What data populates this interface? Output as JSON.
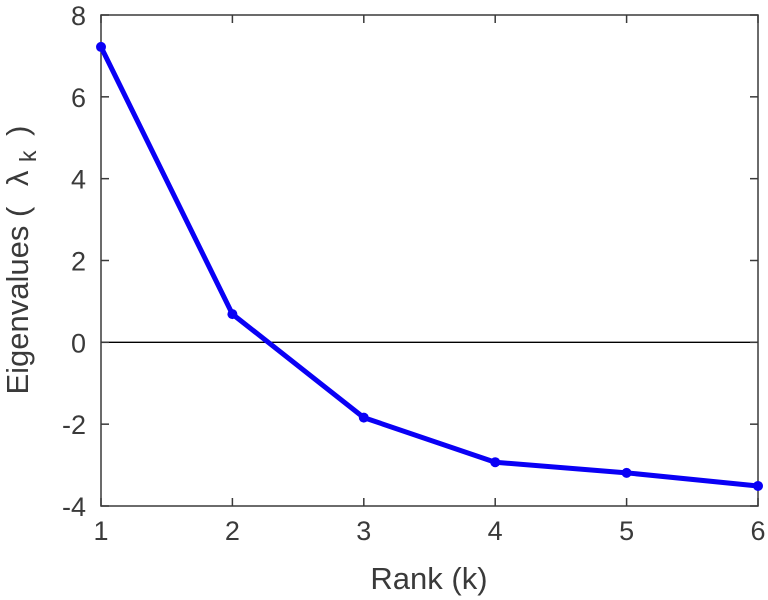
{
  "chart_data": {
    "type": "line",
    "x": [
      1,
      2,
      3,
      4,
      5,
      6
    ],
    "series": [
      {
        "values": [
          7.22,
          0.69,
          -1.84,
          -2.93,
          -3.19,
          -3.51
        ],
        "color": "#0a00f5"
      }
    ],
    "xlim": [
      1,
      6
    ],
    "ylim": [
      -4,
      8
    ],
    "x_ticks": [
      "1",
      "2",
      "3",
      "4",
      "5",
      "6"
    ],
    "y_ticks": [
      "8",
      "6",
      "4",
      "2",
      "0",
      "-2",
      "-4"
    ],
    "xlabel": "Rank (k)",
    "ylabel": {
      "text": "Eigenvalues (",
      "symbol": "λ",
      "subscript": "k",
      "close": ")"
    },
    "zero_line": true,
    "grid": false,
    "legend": "none",
    "line_color": "#0a00f5",
    "axis_color": "#3a3a3a"
  }
}
